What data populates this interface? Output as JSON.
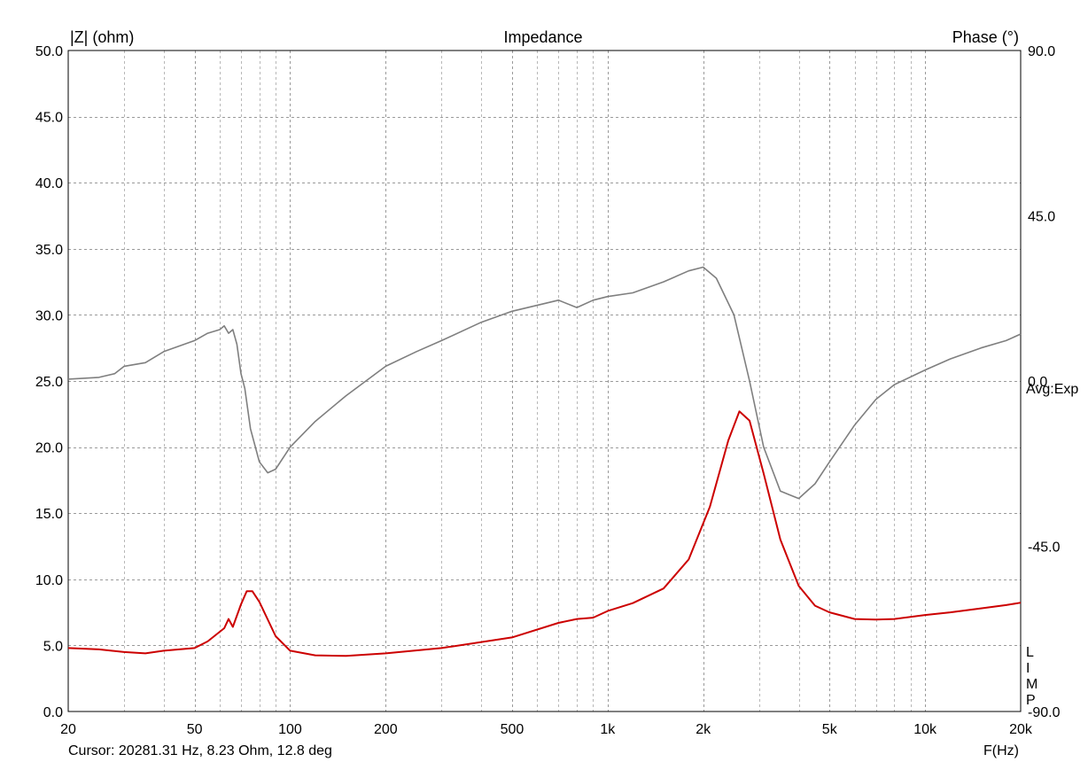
{
  "chart_data": {
    "type": "line",
    "title": "Impedance",
    "ylabel_left": "|Z| (ohm)",
    "ylabel_right": "Phase (°)",
    "xlabel": "F(Hz)",
    "x_scale": "log",
    "xlim": [
      20,
      20000
    ],
    "ylim_left": [
      0,
      50
    ],
    "ylim_right": [
      -90,
      90
    ],
    "grid": true,
    "x_ticks": [
      {
        "value": 20,
        "label": "20"
      },
      {
        "value": 50,
        "label": "50"
      },
      {
        "value": 100,
        "label": "100"
      },
      {
        "value": 200,
        "label": "200"
      },
      {
        "value": 500,
        "label": "500"
      },
      {
        "value": 1000,
        "label": "1k"
      },
      {
        "value": 2000,
        "label": "2k"
      },
      {
        "value": 5000,
        "label": "5k"
      },
      {
        "value": 10000,
        "label": "10k"
      },
      {
        "value": 20000,
        "label": "20k"
      }
    ],
    "y_left_ticks": [
      "50.0",
      "45.0",
      "40.0",
      "35.0",
      "30.0",
      "25.0",
      "20.0",
      "15.0",
      "10.0",
      "5.0",
      "0.0"
    ],
    "y_right_ticks": [
      "90.0",
      "45.0",
      "0.0",
      "-45.0",
      "-90.0"
    ],
    "series": [
      {
        "name": "impedance",
        "axis": "left",
        "color": "#cc0000",
        "points": [
          [
            20,
            4.8
          ],
          [
            25,
            4.7
          ],
          [
            30,
            4.5
          ],
          [
            35,
            4.4
          ],
          [
            40,
            4.6
          ],
          [
            50,
            4.8
          ],
          [
            55,
            5.3
          ],
          [
            62,
            6.3
          ],
          [
            64,
            7.0
          ],
          [
            66,
            6.4
          ],
          [
            70,
            8.1
          ],
          [
            73,
            9.1
          ],
          [
            76,
            9.1
          ],
          [
            80,
            8.3
          ],
          [
            90,
            5.7
          ],
          [
            100,
            4.6
          ],
          [
            120,
            4.25
          ],
          [
            150,
            4.2
          ],
          [
            200,
            4.4
          ],
          [
            300,
            4.8
          ],
          [
            500,
            5.6
          ],
          [
            700,
            6.7
          ],
          [
            800,
            7.0
          ],
          [
            900,
            7.1
          ],
          [
            1000,
            7.6
          ],
          [
            1200,
            8.2
          ],
          [
            1500,
            9.3
          ],
          [
            1800,
            11.5
          ],
          [
            2100,
            15.5
          ],
          [
            2400,
            20.5
          ],
          [
            2600,
            22.7
          ],
          [
            2800,
            22.0
          ],
          [
            3100,
            18.0
          ],
          [
            3500,
            13.0
          ],
          [
            4000,
            9.5
          ],
          [
            4500,
            8.0
          ],
          [
            5000,
            7.5
          ],
          [
            6000,
            7.0
          ],
          [
            7000,
            6.95
          ],
          [
            8000,
            7.0
          ],
          [
            10000,
            7.3
          ],
          [
            12000,
            7.5
          ],
          [
            15000,
            7.8
          ],
          [
            18000,
            8.05
          ],
          [
            20000,
            8.23
          ]
        ]
      },
      {
        "name": "phase",
        "axis": "right",
        "color": "#7f7f7f",
        "points": [
          [
            20,
            0.5
          ],
          [
            25,
            1
          ],
          [
            28,
            2
          ],
          [
            30,
            4
          ],
          [
            35,
            5
          ],
          [
            40,
            8
          ],
          [
            50,
            11
          ],
          [
            55,
            13
          ],
          [
            60,
            14
          ],
          [
            62,
            15
          ],
          [
            64,
            13
          ],
          [
            66,
            14
          ],
          [
            68,
            10
          ],
          [
            70,
            2
          ],
          [
            72,
            -2
          ],
          [
            75,
            -13
          ],
          [
            80,
            -22
          ],
          [
            85,
            -25
          ],
          [
            90,
            -24
          ],
          [
            100,
            -18
          ],
          [
            120,
            -11
          ],
          [
            150,
            -4
          ],
          [
            200,
            4
          ],
          [
            250,
            8
          ],
          [
            300,
            11
          ],
          [
            400,
            16
          ],
          [
            500,
            19
          ],
          [
            700,
            22
          ],
          [
            800,
            20
          ],
          [
            900,
            22
          ],
          [
            1000,
            23
          ],
          [
            1200,
            24
          ],
          [
            1500,
            27
          ],
          [
            1800,
            30
          ],
          [
            2000,
            31
          ],
          [
            2200,
            28
          ],
          [
            2500,
            18
          ],
          [
            2800,
            0
          ],
          [
            3100,
            -18
          ],
          [
            3500,
            -30
          ],
          [
            4000,
            -32
          ],
          [
            4500,
            -28
          ],
          [
            5000,
            -22
          ],
          [
            6000,
            -12
          ],
          [
            7000,
            -5
          ],
          [
            8000,
            -1
          ],
          [
            10000,
            3
          ],
          [
            12000,
            6
          ],
          [
            15000,
            9
          ],
          [
            18000,
            11
          ],
          [
            20000,
            12.8
          ]
        ]
      }
    ],
    "annotations": {
      "cursor": "Cursor: 20281.31 Hz, 8.23 Ohm, 12.8 deg",
      "avg": "Avg:Exp",
      "limp": [
        "L",
        "I",
        "M",
        "P"
      ]
    }
  }
}
